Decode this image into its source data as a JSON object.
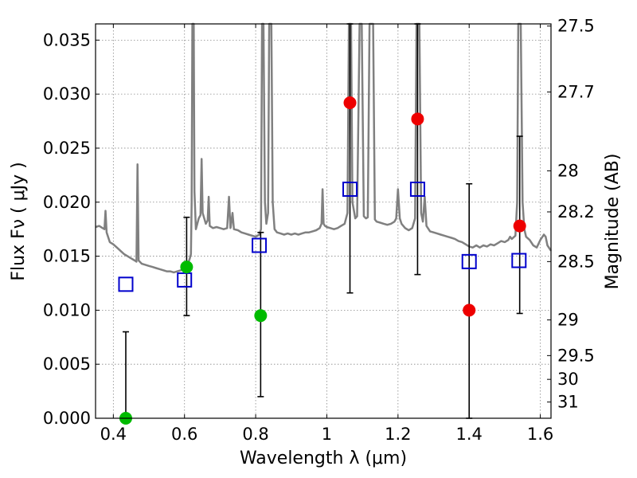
{
  "chart_data": {
    "type": "scatter",
    "xlabel": "Wavelength  λ (μm)",
    "ylabel": "Flux  Fν  ( μJy )",
    "y2label": "Magnitude (AB)",
    "xlim": [
      0.35,
      1.63
    ],
    "ylim": [
      0.0,
      0.0365
    ],
    "grid": true,
    "x_ticks": [
      0.4,
      0.6,
      0.8,
      1.0,
      1.2,
      1.4,
      1.6
    ],
    "x_tick_labels": [
      "0.4",
      "0.6",
      "0.8",
      "1",
      "1.2",
      "1.4",
      "1.6"
    ],
    "y_ticks": [
      0.0,
      0.005,
      0.01,
      0.015,
      0.02,
      0.025,
      0.03,
      0.035
    ],
    "y_tick_labels": [
      "0.000",
      "0.005",
      "0.010",
      "0.015",
      "0.020",
      "0.025",
      "0.030",
      "0.035"
    ],
    "y2_ticks": [
      {
        "label": "27.5",
        "flux": 0.0363
      },
      {
        "label": "27.7",
        "flux": 0.0302
      },
      {
        "label": "28",
        "flux": 0.0229
      },
      {
        "label": "28.2",
        "flux": 0.0191
      },
      {
        "label": "28.5",
        "flux": 0.0145
      },
      {
        "label": "29",
        "flux": 0.0091
      },
      {
        "label": "29.5",
        "flux": 0.0058
      },
      {
        "label": "30",
        "flux": 0.0036
      },
      {
        "label": "31",
        "flux": 0.0015
      }
    ],
    "colors": {
      "template": "#808080",
      "model": "#0000cc",
      "green": "#00bb00",
      "red": "#ee0000",
      "errorbar": "#000000",
      "grid": "#888888"
    },
    "series": [
      {
        "marker": "open-square",
        "color": "#0000cc",
        "points": [
          {
            "x": 0.435,
            "y": 0.0124
          },
          {
            "x": 0.6,
            "y": 0.0128
          },
          {
            "x": 0.81,
            "y": 0.016
          },
          {
            "x": 1.065,
            "y": 0.0212
          },
          {
            "x": 1.255,
            "y": 0.0212
          },
          {
            "x": 1.4,
            "y": 0.0145
          },
          {
            "x": 1.54,
            "y": 0.0146
          }
        ]
      },
      {
        "marker": "filled-circle",
        "color": "#00bb00",
        "points": [
          {
            "x": 0.435,
            "y": 0.0,
            "ylo": 0.0,
            "yhi": 0.008
          },
          {
            "x": 0.606,
            "y": 0.014,
            "ylo": 0.0095,
            "yhi": 0.0186
          },
          {
            "x": 0.814,
            "y": 0.0095,
            "ylo": 0.002,
            "yhi": 0.0172
          }
        ]
      },
      {
        "marker": "filled-circle",
        "color": "#ee0000",
        "points": [
          {
            "x": 1.065,
            "y": 0.0292,
            "ylo": 0.0116,
            "yhi": 0.0365
          },
          {
            "x": 1.255,
            "y": 0.0277,
            "ylo": 0.0133,
            "yhi": 0.0365
          },
          {
            "x": 1.4,
            "y": 0.01,
            "ylo": 0.0,
            "yhi": 0.0217
          },
          {
            "x": 1.542,
            "y": 0.0178,
            "ylo": 0.0097,
            "yhi": 0.0261
          }
        ]
      }
    ],
    "template_spectrum": [
      [
        0.35,
        0.0177
      ],
      [
        0.36,
        0.0178
      ],
      [
        0.37,
        0.0176
      ],
      [
        0.375,
        0.0175
      ],
      [
        0.378,
        0.0192
      ],
      [
        0.381,
        0.0172
      ],
      [
        0.39,
        0.0163
      ],
      [
        0.4,
        0.0161
      ],
      [
        0.41,
        0.0158
      ],
      [
        0.42,
        0.0155
      ],
      [
        0.43,
        0.0152
      ],
      [
        0.44,
        0.015
      ],
      [
        0.45,
        0.0148
      ],
      [
        0.46,
        0.0146
      ],
      [
        0.465,
        0.0145
      ],
      [
        0.468,
        0.0235
      ],
      [
        0.471,
        0.0146
      ],
      [
        0.48,
        0.0143
      ],
      [
        0.49,
        0.0142
      ],
      [
        0.5,
        0.0141
      ],
      [
        0.51,
        0.014
      ],
      [
        0.52,
        0.0139
      ],
      [
        0.53,
        0.0138
      ],
      [
        0.54,
        0.0137
      ],
      [
        0.55,
        0.0136
      ],
      [
        0.56,
        0.0136
      ],
      [
        0.57,
        0.0135
      ],
      [
        0.58,
        0.0136
      ],
      [
        0.59,
        0.0137
      ],
      [
        0.6,
        0.0139
      ],
      [
        0.61,
        0.0143
      ],
      [
        0.615,
        0.0148
      ],
      [
        0.618,
        0.0152
      ],
      [
        0.62,
        0.02
      ],
      [
        0.622,
        0.0365
      ],
      [
        0.626,
        0.0365
      ],
      [
        0.628,
        0.021
      ],
      [
        0.632,
        0.0175
      ],
      [
        0.64,
        0.0185
      ],
      [
        0.645,
        0.0188
      ],
      [
        0.648,
        0.024
      ],
      [
        0.651,
        0.019
      ],
      [
        0.66,
        0.018
      ],
      [
        0.665,
        0.0183
      ],
      [
        0.668,
        0.0205
      ],
      [
        0.671,
        0.0178
      ],
      [
        0.68,
        0.0176
      ],
      [
        0.69,
        0.0177
      ],
      [
        0.7,
        0.0176
      ],
      [
        0.71,
        0.0175
      ],
      [
        0.72,
        0.0176
      ],
      [
        0.725,
        0.0205
      ],
      [
        0.729,
        0.0176
      ],
      [
        0.73,
        0.0177
      ],
      [
        0.735,
        0.019
      ],
      [
        0.739,
        0.0175
      ],
      [
        0.75,
        0.0174
      ],
      [
        0.76,
        0.0172
      ],
      [
        0.77,
        0.0171
      ],
      [
        0.78,
        0.017
      ],
      [
        0.79,
        0.0169
      ],
      [
        0.8,
        0.0168
      ],
      [
        0.81,
        0.017
      ],
      [
        0.815,
        0.0175
      ],
      [
        0.818,
        0.0365
      ],
      [
        0.822,
        0.0365
      ],
      [
        0.826,
        0.02
      ],
      [
        0.83,
        0.018
      ],
      [
        0.835,
        0.019
      ],
      [
        0.838,
        0.0365
      ],
      [
        0.844,
        0.0365
      ],
      [
        0.848,
        0.02
      ],
      [
        0.853,
        0.0175
      ],
      [
        0.86,
        0.0172
      ],
      [
        0.87,
        0.0171
      ],
      [
        0.88,
        0.017
      ],
      [
        0.89,
        0.0171
      ],
      [
        0.9,
        0.017
      ],
      [
        0.91,
        0.0171
      ],
      [
        0.92,
        0.017
      ],
      [
        0.93,
        0.0171
      ],
      [
        0.94,
        0.0172
      ],
      [
        0.95,
        0.0172
      ],
      [
        0.96,
        0.0173
      ],
      [
        0.97,
        0.0174
      ],
      [
        0.98,
        0.0176
      ],
      [
        0.985,
        0.018
      ],
      [
        0.988,
        0.0212
      ],
      [
        0.991,
        0.018
      ],
      [
        0.995,
        0.0178
      ],
      [
        1.0,
        0.0177
      ],
      [
        1.01,
        0.0176
      ],
      [
        1.02,
        0.0175
      ],
      [
        1.03,
        0.0176
      ],
      [
        1.04,
        0.0178
      ],
      [
        1.05,
        0.018
      ],
      [
        1.058,
        0.019
      ],
      [
        1.062,
        0.0365
      ],
      [
        1.068,
        0.0365
      ],
      [
        1.072,
        0.02
      ],
      [
        1.08,
        0.0185
      ],
      [
        1.085,
        0.0187
      ],
      [
        1.092,
        0.0365
      ],
      [
        1.098,
        0.0365
      ],
      [
        1.104,
        0.0187
      ],
      [
        1.11,
        0.0185
      ],
      [
        1.115,
        0.0186
      ],
      [
        1.12,
        0.0365
      ],
      [
        1.13,
        0.0365
      ],
      [
        1.135,
        0.0184
      ],
      [
        1.14,
        0.0182
      ],
      [
        1.15,
        0.0181
      ],
      [
        1.16,
        0.018
      ],
      [
        1.17,
        0.0179
      ],
      [
        1.18,
        0.018
      ],
      [
        1.19,
        0.0182
      ],
      [
        1.195,
        0.0185
      ],
      [
        1.2,
        0.0212
      ],
      [
        1.205,
        0.0185
      ],
      [
        1.21,
        0.018
      ],
      [
        1.22,
        0.0176
      ],
      [
        1.23,
        0.0174
      ],
      [
        1.24,
        0.0176
      ],
      [
        1.248,
        0.0185
      ],
      [
        1.252,
        0.0365
      ],
      [
        1.26,
        0.0365
      ],
      [
        1.265,
        0.019
      ],
      [
        1.27,
        0.0182
      ],
      [
        1.275,
        0.0205
      ],
      [
        1.28,
        0.0178
      ],
      [
        1.29,
        0.0173
      ],
      [
        1.3,
        0.0172
      ],
      [
        1.31,
        0.0171
      ],
      [
        1.32,
        0.017
      ],
      [
        1.33,
        0.0169
      ],
      [
        1.34,
        0.0168
      ],
      [
        1.35,
        0.0167
      ],
      [
        1.36,
        0.0166
      ],
      [
        1.37,
        0.0164
      ],
      [
        1.38,
        0.0163
      ],
      [
        1.39,
        0.0161
      ],
      [
        1.4,
        0.0159
      ],
      [
        1.41,
        0.0158
      ],
      [
        1.42,
        0.016
      ],
      [
        1.43,
        0.0158
      ],
      [
        1.44,
        0.016
      ],
      [
        1.45,
        0.0159
      ],
      [
        1.46,
        0.0161
      ],
      [
        1.47,
        0.016
      ],
      [
        1.48,
        0.0162
      ],
      [
        1.49,
        0.0164
      ],
      [
        1.5,
        0.0163
      ],
      [
        1.51,
        0.0165
      ],
      [
        1.515,
        0.0168
      ],
      [
        1.52,
        0.0166
      ],
      [
        1.53,
        0.0169
      ],
      [
        1.535,
        0.02
      ],
      [
        1.538,
        0.0365
      ],
      [
        1.545,
        0.0365
      ],
      [
        1.55,
        0.02
      ],
      [
        1.555,
        0.0175
      ],
      [
        1.56,
        0.0168
      ],
      [
        1.57,
        0.0165
      ],
      [
        1.58,
        0.016
      ],
      [
        1.59,
        0.0158
      ],
      [
        1.6,
        0.0165
      ],
      [
        1.61,
        0.017
      ],
      [
        1.615,
        0.0168
      ],
      [
        1.62,
        0.016
      ],
      [
        1.63,
        0.0155
      ]
    ]
  }
}
